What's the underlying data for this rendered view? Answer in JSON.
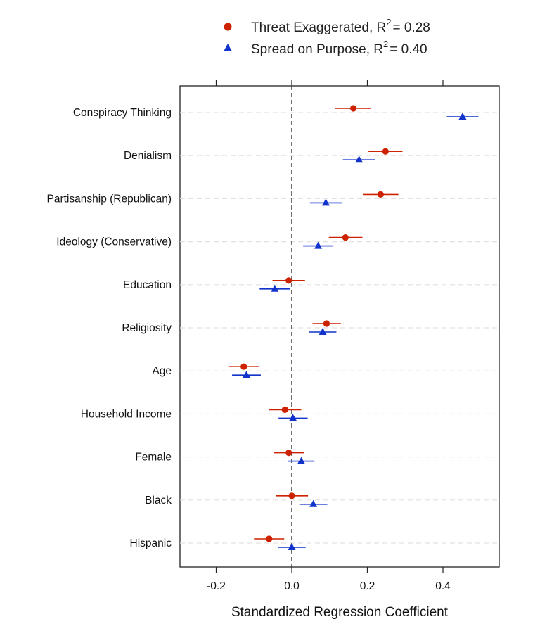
{
  "chart_data": {
    "type": "scatter",
    "subtype": "coefficient-plot",
    "xlabel": "Standardized Regression Coefficient",
    "xlim": [
      -0.3,
      0.55
    ],
    "xticks": [
      -0.2,
      0.0,
      0.2,
      0.4
    ],
    "xtick_labels": [
      "-0.2",
      "0.0",
      "0.2",
      "0.4"
    ],
    "reference_line_x": 0,
    "categories": [
      "Conspiracy Thinking",
      "Denialism",
      "Partisanship (Republican)",
      "Ideology (Conservative)",
      "Education",
      "Religiosity",
      "Age",
      "Household Income",
      "Female",
      "Black",
      "Hispanic"
    ],
    "legend_position": "top-center",
    "series": [
      {
        "name": "Threat Exaggerated",
        "r2_label": "R",
        "r2_superscript": "2",
        "r2_value": "= 0.28",
        "marker": "circle",
        "color": "#cc2200",
        "values": [
          0.163,
          0.248,
          0.235,
          0.142,
          -0.008,
          0.092,
          -0.127,
          -0.018,
          -0.008,
          0.0,
          -0.06
        ],
        "ci_low": [
          0.115,
          0.203,
          0.188,
          0.098,
          -0.051,
          0.055,
          -0.168,
          -0.06,
          -0.048,
          -0.042,
          -0.1
        ],
        "ci_high": [
          0.21,
          0.293,
          0.282,
          0.187,
          0.035,
          0.13,
          -0.086,
          0.025,
          0.032,
          0.043,
          -0.02
        ]
      },
      {
        "name": "Spread on Purpose",
        "r2_label": "R",
        "r2_superscript": "2",
        "r2_value": "= 0.40",
        "marker": "triangle",
        "color": "#1133cc",
        "values": [
          0.452,
          0.178,
          0.09,
          0.07,
          -0.045,
          0.082,
          -0.12,
          0.003,
          0.025,
          0.057,
          0.0
        ],
        "ci_low": [
          0.41,
          0.135,
          0.048,
          0.03,
          -0.085,
          0.045,
          -0.158,
          -0.035,
          -0.01,
          0.02,
          -0.037
        ],
        "ci_high": [
          0.494,
          0.22,
          0.133,
          0.11,
          -0.005,
          0.118,
          -0.082,
          0.042,
          0.06,
          0.094,
          0.037
        ]
      }
    ]
  }
}
